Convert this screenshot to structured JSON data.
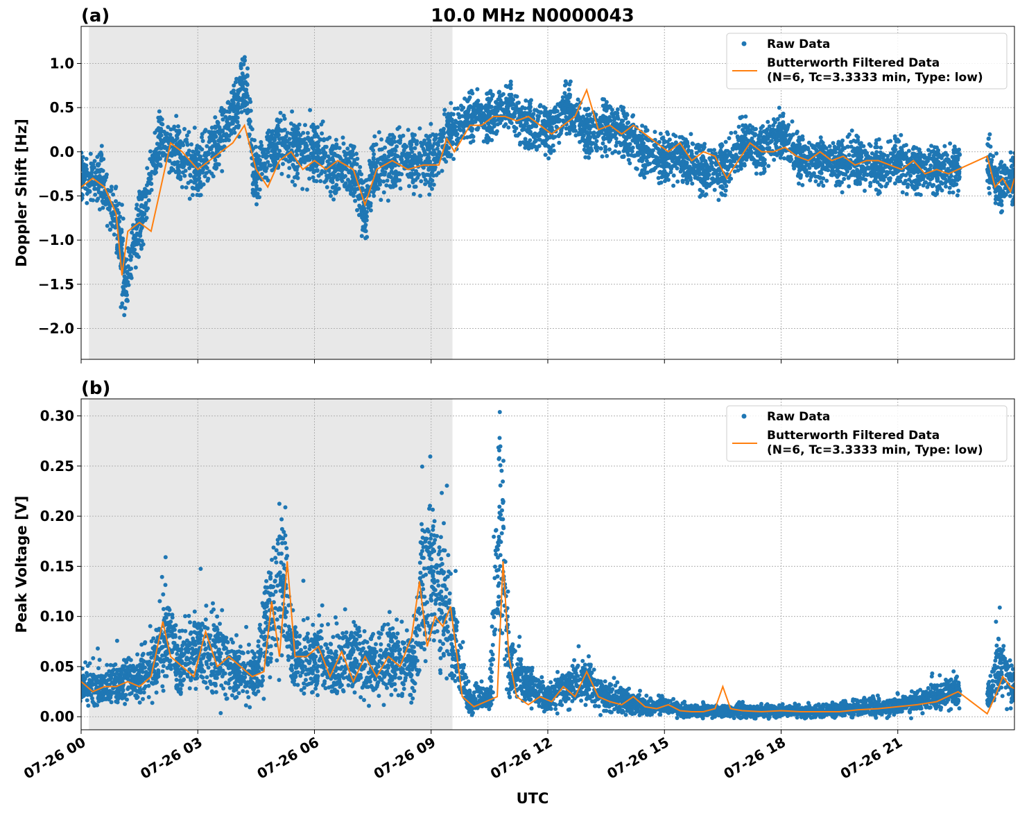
{
  "figure": {
    "title": "10.0 MHz N0000043",
    "xlabel": "UTC"
  },
  "colors": {
    "raw": "#1f77b4",
    "filtered": "#ff7f0e",
    "night_shade": "#e8e8e8",
    "grid": "#b0b0b0"
  },
  "legend": {
    "raw": "Raw Data",
    "filtered_line1": "Butterworth Filtered Data",
    "filtered_line2": "(N=6, Tc=3.3333 min, Type: low)"
  },
  "chart_data": [
    {
      "type": "scatter",
      "panel": "(a)",
      "title": "10.0 MHz N0000043",
      "ylabel": "Doppler Shift [Hz]",
      "xlabel": "",
      "xlim": [
        0,
        24
      ],
      "ylim": [
        -2.35,
        1.42
      ],
      "yticks": [
        -2.0,
        -1.5,
        -1.0,
        -0.5,
        0.0,
        0.5,
        1.0
      ],
      "ytick_labels": [
        "−2.0",
        "−1.5",
        "−1.0",
        "−0.5",
        "0.0",
        "0.5",
        "1.0"
      ],
      "xticks": [
        0,
        3,
        6,
        9,
        12,
        15,
        18,
        21
      ],
      "shaded_region_hours": [
        0.2,
        9.55
      ],
      "grid": true,
      "legend_position": "top-right",
      "data_gap_hours": [
        22.6,
        23.3
      ],
      "series": [
        {
          "name": "Raw Data",
          "style": "points",
          "x": [
            0,
            0.5,
            1.0,
            1.1,
            1.5,
            2.0,
            2.5,
            3.0,
            3.5,
            4.0,
            4.2,
            4.5,
            5.0,
            5.5,
            6.0,
            6.5,
            7.0,
            7.3,
            7.5,
            8.0,
            8.5,
            9.0,
            9.5,
            10.0,
            10.5,
            11.0,
            11.5,
            12.0,
            12.5,
            13.0,
            13.5,
            14.0,
            14.5,
            15.0,
            15.5,
            16.0,
            16.5,
            17.0,
            17.5,
            18.0,
            18.5,
            19.0,
            19.5,
            20.0,
            20.5,
            21.0,
            21.5,
            22.0,
            22.5,
            23.3,
            23.6,
            24.0
          ],
          "y": [
            -0.3,
            -0.3,
            -0.9,
            -1.5,
            -0.8,
            0.1,
            0.0,
            -0.2,
            0.1,
            0.5,
            0.8,
            -0.3,
            0.1,
            0.0,
            0.0,
            -0.2,
            -0.2,
            -0.7,
            -0.2,
            -0.1,
            -0.1,
            -0.1,
            0.2,
            0.4,
            0.4,
            0.5,
            0.3,
            0.2,
            0.5,
            0.2,
            0.3,
            0.2,
            0.0,
            -0.1,
            -0.1,
            -0.2,
            -0.2,
            0.1,
            0.0,
            0.2,
            -0.1,
            -0.1,
            -0.1,
            -0.1,
            -0.2,
            -0.1,
            -0.2,
            -0.2,
            -0.2,
            -0.1,
            -0.4,
            -0.3
          ]
        },
        {
          "name": "Butterworth Filtered Data (N=6, Tc=3.3333 min, Type: low)",
          "style": "line",
          "x": [
            0,
            0.3,
            0.6,
            0.9,
            1.05,
            1.2,
            1.5,
            1.8,
            2.0,
            2.3,
            2.6,
            3.0,
            3.3,
            3.6,
            3.9,
            4.2,
            4.5,
            4.8,
            5.1,
            5.4,
            5.7,
            6.0,
            6.3,
            6.6,
            7.0,
            7.3,
            7.6,
            8.0,
            8.4,
            8.8,
            9.2,
            9.4,
            9.6,
            10.0,
            10.3,
            10.6,
            10.9,
            11.2,
            11.5,
            11.8,
            12.1,
            12.4,
            12.7,
            13.0,
            13.3,
            13.6,
            13.9,
            14.2,
            14.5,
            14.8,
            15.1,
            15.4,
            15.7,
            16.0,
            16.3,
            16.6,
            16.9,
            17.2,
            17.5,
            17.8,
            18.1,
            18.4,
            18.7,
            19.0,
            19.3,
            19.6,
            19.9,
            20.2,
            20.5,
            20.8,
            21.1,
            21.4,
            21.7,
            22.0,
            22.3,
            22.55,
            23.3,
            23.5,
            23.7,
            23.9,
            24.0
          ],
          "y": [
            -0.4,
            -0.3,
            -0.4,
            -0.7,
            -1.4,
            -0.9,
            -0.8,
            -0.9,
            -0.5,
            0.1,
            0.0,
            -0.2,
            -0.1,
            0.0,
            0.1,
            0.3,
            -0.2,
            -0.4,
            -0.1,
            0.0,
            -0.2,
            -0.1,
            -0.2,
            -0.1,
            -0.2,
            -0.6,
            -0.2,
            -0.1,
            -0.2,
            -0.15,
            -0.15,
            0.15,
            0.0,
            0.3,
            0.3,
            0.4,
            0.4,
            0.35,
            0.4,
            0.3,
            0.2,
            0.3,
            0.4,
            0.7,
            0.25,
            0.3,
            0.2,
            0.3,
            0.2,
            0.1,
            0.0,
            0.1,
            -0.1,
            0.0,
            -0.05,
            -0.3,
            -0.1,
            0.1,
            0.0,
            0.0,
            0.05,
            -0.05,
            -0.1,
            0.0,
            -0.1,
            -0.05,
            -0.15,
            -0.1,
            -0.1,
            -0.15,
            -0.2,
            -0.1,
            -0.25,
            -0.2,
            -0.25,
            -0.2,
            -0.05,
            -0.4,
            -0.3,
            -0.45,
            -0.3
          ]
        }
      ]
    },
    {
      "type": "scatter",
      "panel": "(b)",
      "title": "",
      "ylabel": "Peak Voltage [V]",
      "xlabel": "UTC",
      "xlim": [
        0,
        24
      ],
      "ylim": [
        -0.013,
        0.317
      ],
      "yticks": [
        0.0,
        0.05,
        0.1,
        0.15,
        0.2,
        0.25,
        0.3
      ],
      "ytick_labels": [
        "0.00",
        "0.05",
        "0.10",
        "0.15",
        "0.20",
        "0.25",
        "0.30"
      ],
      "xticks": [
        0,
        3,
        6,
        9,
        12,
        15,
        18,
        21
      ],
      "xtick_labels": [
        "07-26 00",
        "07-26 03",
        "07-26 06",
        "07-26 09",
        "07-26 12",
        "07-26 15",
        "07-26 18",
        "07-26 21"
      ],
      "shaded_region_hours": [
        0.2,
        9.55
      ],
      "grid": true,
      "legend_position": "top-right",
      "data_gap_hours": [
        22.6,
        23.3
      ],
      "series": [
        {
          "name": "Raw Data",
          "style": "points",
          "x": [
            0,
            0.5,
            1.0,
            1.5,
            1.9,
            2.2,
            2.5,
            3.0,
            3.5,
            4.0,
            4.5,
            4.8,
            5.2,
            5.5,
            6.0,
            6.5,
            7.0,
            7.5,
            8.0,
            8.5,
            8.8,
            9.0,
            9.3,
            9.6,
            10.0,
            10.5,
            10.8,
            11.0,
            11.5,
            12.0,
            12.5,
            13.0,
            13.5,
            14.0,
            14.5,
            15.0,
            15.5,
            16.0,
            16.5,
            17.0,
            17.5,
            18.0,
            18.5,
            19.0,
            19.5,
            20.0,
            20.5,
            21.0,
            21.5,
            22.0,
            22.5,
            23.3,
            23.6,
            24.0
          ],
          "y": [
            0.03,
            0.03,
            0.035,
            0.035,
            0.06,
            0.08,
            0.05,
            0.07,
            0.06,
            0.05,
            0.04,
            0.1,
            0.14,
            0.06,
            0.06,
            0.05,
            0.06,
            0.05,
            0.06,
            0.05,
            0.13,
            0.15,
            0.12,
            0.07,
            0.015,
            0.02,
            0.2,
            0.05,
            0.03,
            0.02,
            0.03,
            0.035,
            0.02,
            0.015,
            0.01,
            0.01,
            0.006,
            0.006,
            0.005,
            0.006,
            0.005,
            0.005,
            0.005,
            0.005,
            0.007,
            0.008,
            0.01,
            0.01,
            0.015,
            0.02,
            0.025,
            0.02,
            0.05,
            0.03
          ]
        },
        {
          "name": "Butterworth Filtered Data (N=6, Tc=3.3333 min, Type: low)",
          "style": "line",
          "x": [
            0,
            0.3,
            0.6,
            0.9,
            1.2,
            1.5,
            1.8,
            2.1,
            2.3,
            2.6,
            2.9,
            3.2,
            3.5,
            3.8,
            4.1,
            4.4,
            4.7,
            4.9,
            5.1,
            5.3,
            5.5,
            5.8,
            6.1,
            6.4,
            6.7,
            7.0,
            7.3,
            7.6,
            7.9,
            8.2,
            8.5,
            8.7,
            8.9,
            9.1,
            9.3,
            9.5,
            9.8,
            10.1,
            10.4,
            10.7,
            10.85,
            11.0,
            11.2,
            11.5,
            11.8,
            12.1,
            12.4,
            12.7,
            13.0,
            13.3,
            13.6,
            13.9,
            14.2,
            14.5,
            14.8,
            15.1,
            15.4,
            15.7,
            16.0,
            16.3,
            16.5,
            16.7,
            17.0,
            17.5,
            18.0,
            18.5,
            19.0,
            19.5,
            20.0,
            20.5,
            21.0,
            21.5,
            22.0,
            22.55,
            23.3,
            23.5,
            23.7,
            23.9,
            24.0
          ],
          "y": [
            0.035,
            0.025,
            0.03,
            0.03,
            0.035,
            0.03,
            0.04,
            0.095,
            0.06,
            0.05,
            0.04,
            0.085,
            0.05,
            0.06,
            0.05,
            0.04,
            0.045,
            0.115,
            0.06,
            0.155,
            0.06,
            0.06,
            0.07,
            0.04,
            0.065,
            0.035,
            0.06,
            0.04,
            0.06,
            0.05,
            0.08,
            0.135,
            0.07,
            0.1,
            0.09,
            0.11,
            0.02,
            0.01,
            0.015,
            0.02,
            0.155,
            0.06,
            0.02,
            0.012,
            0.02,
            0.015,
            0.03,
            0.02,
            0.045,
            0.02,
            0.015,
            0.012,
            0.02,
            0.01,
            0.008,
            0.012,
            0.006,
            0.005,
            0.005,
            0.008,
            0.03,
            0.008,
            0.006,
            0.005,
            0.006,
            0.005,
            0.005,
            0.005,
            0.007,
            0.008,
            0.01,
            0.012,
            0.015,
            0.025,
            0.003,
            0.02,
            0.04,
            0.03,
            0.028
          ]
        }
      ]
    }
  ]
}
